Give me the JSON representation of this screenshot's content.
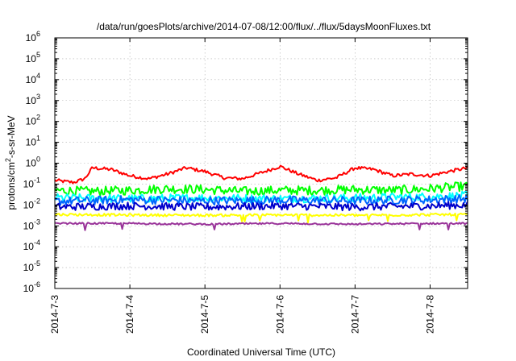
{
  "chart_data": {
    "type": "line",
    "title": "/data/run/goesPlots/archive/2014-07-08/12:00/flux/../flux/5daysMoonFluxes.txt",
    "xlabel": "Coordinated Universal Time (UTC)",
    "ylabel": {
      "prefix": "protons/cm",
      "sup": "2",
      "suffix": "-s-sr-MeV"
    },
    "y_scale": "log",
    "ylim_exp": [
      -6,
      6
    ],
    "y_ticks": [
      {
        "base": "10",
        "exp": "-6",
        "value": -6
      },
      {
        "base": "10",
        "exp": "-5",
        "value": -5
      },
      {
        "base": "10",
        "exp": "-4",
        "value": -4
      },
      {
        "base": "10",
        "exp": "-3",
        "value": -3
      },
      {
        "base": "10",
        "exp": "-2",
        "value": -2
      },
      {
        "base": "10",
        "exp": "-1",
        "value": -1
      },
      {
        "base": "10",
        "exp": "0",
        "value": 0
      },
      {
        "base": "10",
        "exp": "1",
        "value": 1
      },
      {
        "base": "10",
        "exp": "2",
        "value": 2
      },
      {
        "base": "10",
        "exp": "3",
        "value": 3
      },
      {
        "base": "10",
        "exp": "4",
        "value": 4
      },
      {
        "base": "10",
        "exp": "5",
        "value": 5
      },
      {
        "base": "10",
        "exp": "6",
        "value": 6
      }
    ],
    "xlim_days": [
      0,
      5.5
    ],
    "x_ticks": [
      {
        "label": "2014-7-3",
        "day": 0
      },
      {
        "label": "2014-7-4",
        "day": 1
      },
      {
        "label": "2014-7-5",
        "day": 2
      },
      {
        "label": "2014-7-6",
        "day": 3
      },
      {
        "label": "2014-7-7",
        "day": 4
      },
      {
        "label": "2014-7-8",
        "day": 5
      }
    ],
    "grid": true,
    "series": [
      {
        "color": "#ff0000",
        "x": [
          0,
          0.25,
          0.4,
          0.5,
          0.75,
          1.0,
          1.25,
          1.5,
          1.75,
          2.0,
          2.25,
          2.5,
          2.75,
          3.0,
          3.25,
          3.5,
          3.75,
          4.0,
          4.25,
          4.5,
          4.75,
          5.0,
          5.25,
          5.5
        ],
        "y": [
          0.15,
          0.12,
          0.18,
          0.6,
          0.5,
          0.25,
          0.18,
          0.3,
          0.6,
          0.4,
          0.2,
          0.18,
          0.35,
          0.7,
          0.3,
          0.15,
          0.2,
          0.6,
          0.5,
          0.25,
          0.3,
          0.25,
          0.4,
          0.6
        ]
      },
      {
        "color": "#00ff00",
        "x": [
          0,
          0.5,
          1.0,
          1.5,
          2.0,
          2.5,
          3.0,
          3.5,
          4.0,
          4.5,
          5.0,
          5.5
        ],
        "y": [
          0.05,
          0.045,
          0.05,
          0.06,
          0.055,
          0.045,
          0.05,
          0.05,
          0.055,
          0.05,
          0.06,
          0.08
        ]
      },
      {
        "color": "#00ffff",
        "x": [
          0,
          1.0,
          2.0,
          3.0,
          4.0,
          5.0,
          5.5
        ],
        "y": [
          0.022,
          0.02,
          0.022,
          0.02,
          0.022,
          0.025,
          0.028
        ]
      },
      {
        "color": "#0066ff",
        "x": [
          0,
          1.0,
          2.0,
          3.0,
          4.0,
          5.0,
          5.5
        ],
        "y": [
          0.015,
          0.018,
          0.016,
          0.017,
          0.016,
          0.018,
          0.02
        ]
      },
      {
        "color": "#0000cc",
        "x": [
          0,
          1.0,
          2.0,
          3.0,
          4.0,
          5.0,
          5.5
        ],
        "y": [
          0.008,
          0.009,
          0.008,
          0.009,
          0.008,
          0.009,
          0.01
        ]
      },
      {
        "color": "#ffff00",
        "x": [
          0,
          1.0,
          2.0,
          3.0,
          4.0,
          5.0,
          5.5
        ],
        "y": [
          0.0035,
          0.0033,
          0.0032,
          0.0033,
          0.0032,
          0.0034,
          0.0035
        ]
      },
      {
        "color": "#993399",
        "x": [
          0,
          1.0,
          2.0,
          3.0,
          4.0,
          5.0,
          5.5
        ],
        "y": [
          0.0013,
          0.0013,
          0.0012,
          0.0013,
          0.0012,
          0.0013,
          0.0013
        ]
      }
    ]
  }
}
